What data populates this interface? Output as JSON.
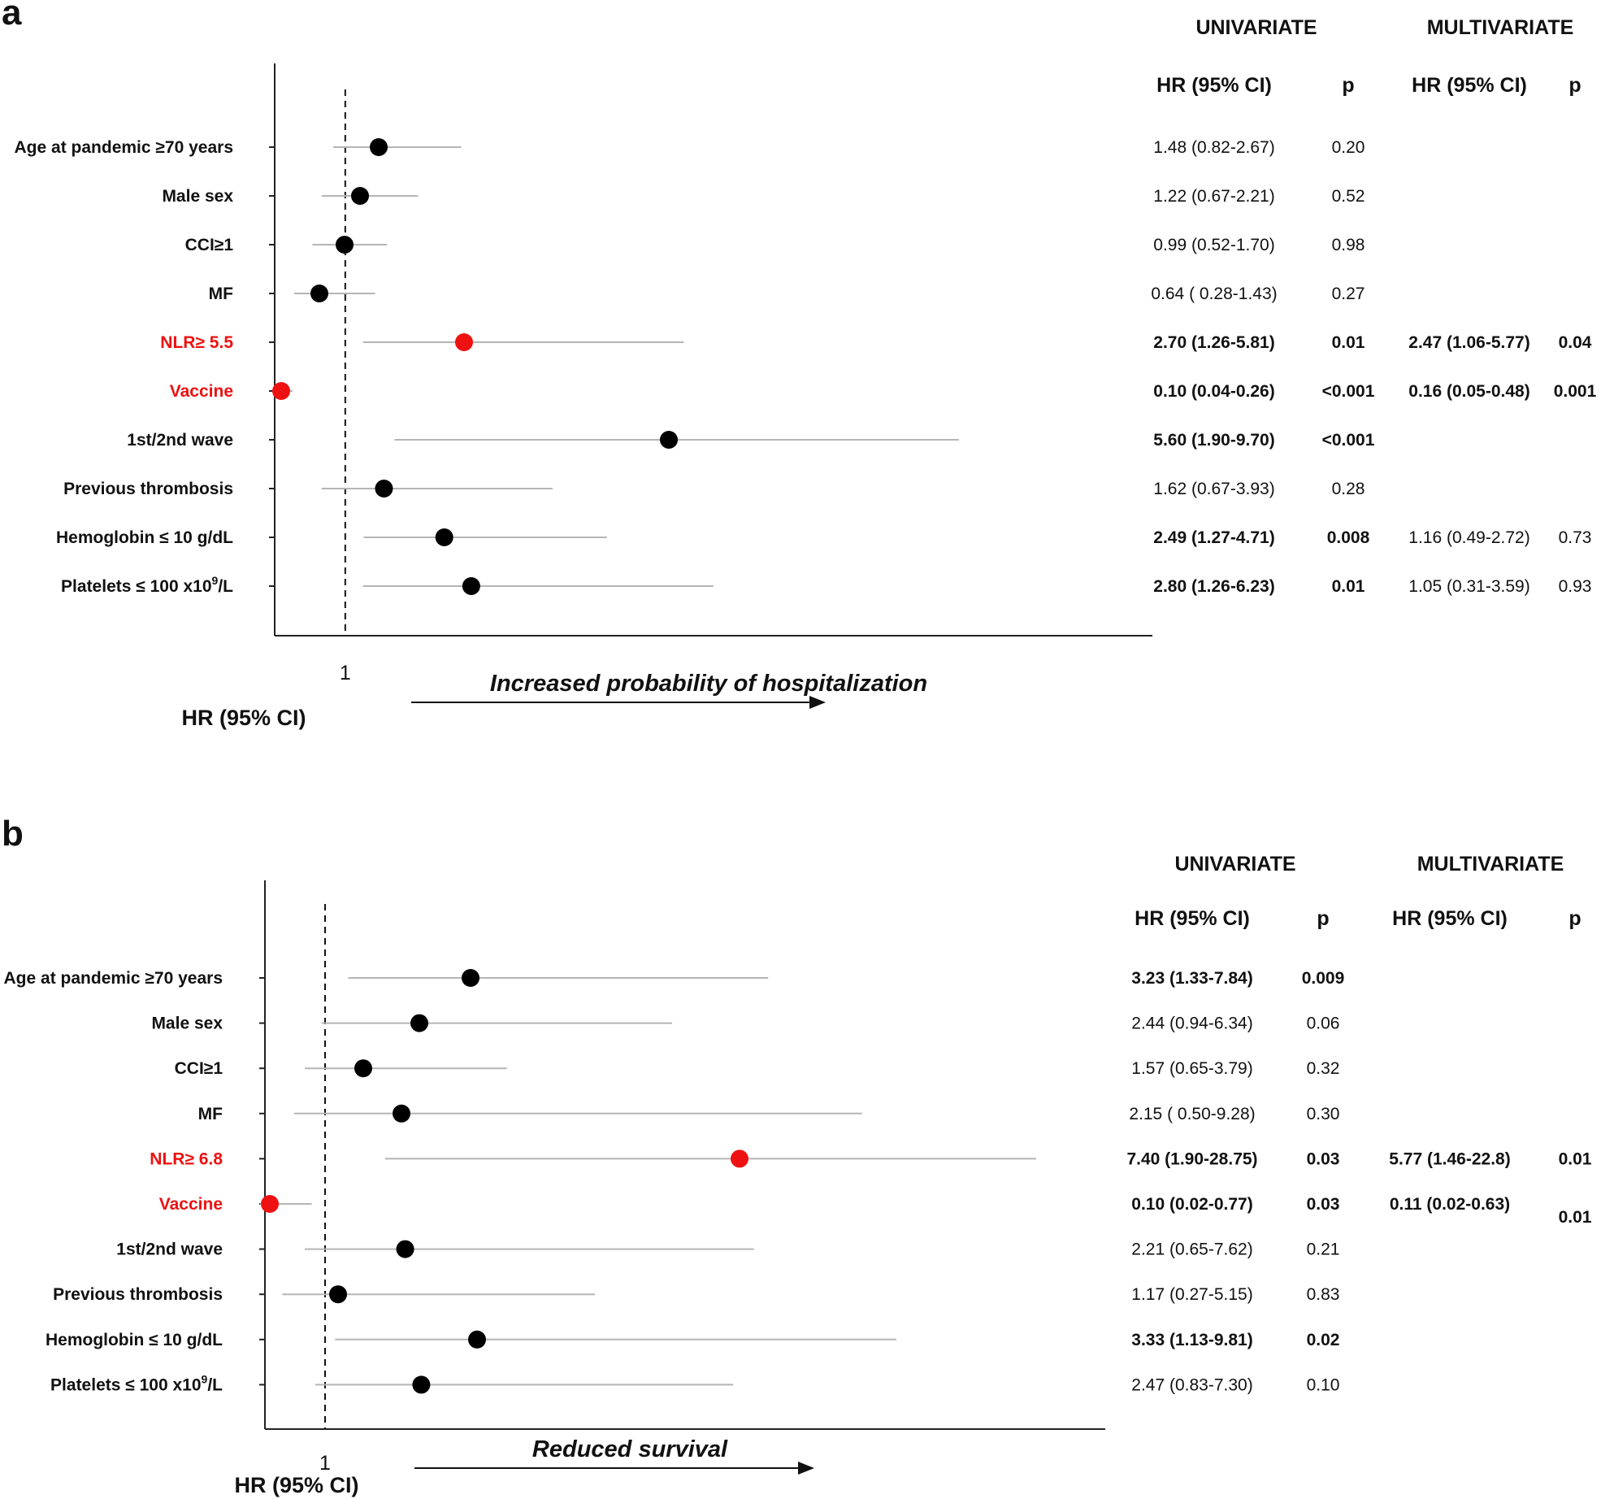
{
  "colors": {
    "highlight": "#ee1111",
    "point": "#000000",
    "ci_line": "#b5b5b5",
    "axis": "#222222"
  },
  "chart_data": [
    {
      "type": "forest",
      "panel": "a",
      "x_reference": 1,
      "x_tick_label": "1",
      "x_axis_label": "HR (95% CI)",
      "arrow_label": "Increased probability of hospitalization",
      "column_groups": [
        "UNIVARIATE",
        "MULTIVARIATE"
      ],
      "column_headers": {
        "uni_hr": "HR (95% CI)",
        "uni_p": "p",
        "multi_hr": "HR (95% CI)",
        "multi_p": "p"
      },
      "rows": [
        {
          "label": "Age at pandemic ≥70 years",
          "highlight": false,
          "hr": 1.48,
          "lo": 0.82,
          "hi": 2.67,
          "uni_hr": "1.48 (0.82-2.67)",
          "uni_p": "0.20",
          "uni_bold": false,
          "multi_hr": "",
          "multi_p": "",
          "multi_bold": false
        },
        {
          "label": "Male sex",
          "highlight": false,
          "hr": 1.22,
          "lo": 0.67,
          "hi": 2.21,
          "uni_hr": "1.22  (0.67-2.21)",
          "uni_p": "0.52",
          "uni_bold": false,
          "multi_hr": "",
          "multi_p": "",
          "multi_bold": false
        },
        {
          "label": "CCI≥1",
          "highlight": false,
          "hr": 0.99,
          "lo": 0.52,
          "hi": 1.7,
          "uni_hr": "0.99 (0.52-1.70)",
          "uni_p": "0.98",
          "uni_bold": false,
          "multi_hr": "",
          "multi_p": "",
          "multi_bold": false
        },
        {
          "label": "MF",
          "highlight": false,
          "hr": 0.64,
          "lo": 0.28,
          "hi": 1.43,
          "uni_hr": "0.64 ( 0.28-1.43)",
          "uni_p": "0.27",
          "uni_bold": false,
          "multi_hr": "",
          "multi_p": "",
          "multi_bold": false
        },
        {
          "label": "NLR≥ 5.5",
          "highlight": true,
          "hr": 2.7,
          "lo": 1.26,
          "hi": 5.81,
          "uni_hr": "2.70 (1.26-5.81)",
          "uni_p": "0.01",
          "uni_bold": true,
          "multi_hr": "2.47 (1.06-5.77)",
          "multi_p": "0.04",
          "multi_bold": true
        },
        {
          "label": "Vaccine",
          "highlight": true,
          "hr": 0.1,
          "lo": 0.04,
          "hi": 0.26,
          "uni_hr": "0.10 (0.04-0.26)",
          "uni_p": "<0.001",
          "uni_bold": true,
          "multi_hr": "0.16 (0.05-0.48)",
          "multi_p": "0.001",
          "multi_bold": true
        },
        {
          "label": "1st/2nd wave",
          "highlight": false,
          "hr": 5.6,
          "lo": 1.9,
          "hi": 9.7,
          "uni_hr": "5.60 (1.90-9.70)",
          "uni_p": "<0.001",
          "uni_bold": true,
          "multi_hr": "",
          "multi_p": "",
          "multi_bold": false
        },
        {
          "label": "Previous thrombosis",
          "highlight": false,
          "hr": 1.62,
          "lo": 0.67,
          "hi": 3.93,
          "uni_hr": "1.62 (0.67-3.93)",
          "uni_p": "0.28",
          "uni_bold": false,
          "multi_hr": "",
          "multi_p": "",
          "multi_bold": false
        },
        {
          "label": "Hemoglobin ≤ 10 g/dL",
          "highlight": false,
          "hr": 2.49,
          "lo": 1.27,
          "hi": 4.71,
          "uni_hr": "2.49 (1.27-4.71)",
          "uni_p": "0.008",
          "uni_bold": true,
          "multi_hr": "1.16 (0.49-2.72)",
          "multi_p": "0.73",
          "multi_bold": false
        },
        {
          "label": "Platelets ≤ 100 x10",
          "label_sup": "9",
          "label_suffix": "/L",
          "highlight": false,
          "hr": 2.8,
          "lo": 1.26,
          "hi": 6.23,
          "uni_hr": "2.80 (1.26-6.23)",
          "uni_p": "0.01",
          "uni_bold": true,
          "multi_hr": "1.05 (0.31-3.59)",
          "multi_p": "0.93",
          "multi_bold": false
        }
      ]
    },
    {
      "type": "forest",
      "panel": "b",
      "x_reference": 1,
      "x_tick_label": "1",
      "x_axis_label": "HR (95% CI)",
      "arrow_label": "Reduced survival",
      "column_groups": [
        "UNIVARIATE",
        "MULTIVARIATE"
      ],
      "column_headers": {
        "uni_hr": "HR (95% CI)",
        "uni_p": "p",
        "multi_hr": "HR (95% CI)",
        "multi_p": "p"
      },
      "rows": [
        {
          "label": "Age at pandemic ≥70 years",
          "highlight": false,
          "hr": 3.23,
          "lo": 1.33,
          "hi": 7.84,
          "uni_hr": "3.23 (1.33-7.84)",
          "uni_p": "0.009",
          "uni_bold": true,
          "multi_hr": "",
          "multi_p": "",
          "multi_bold": false
        },
        {
          "label": "Male sex",
          "highlight": false,
          "hr": 2.44,
          "lo": 0.94,
          "hi": 6.34,
          "uni_hr": "2.44  (0.94-6.34)",
          "uni_p": "0.06",
          "uni_bold": false,
          "multi_hr": "",
          "multi_p": "",
          "multi_bold": false
        },
        {
          "label": "CCI≥1",
          "highlight": false,
          "hr": 1.57,
          "lo": 0.65,
          "hi": 3.79,
          "uni_hr": "1.57 (0.65-3.79)",
          "uni_p": "0.32",
          "uni_bold": false,
          "multi_hr": "",
          "multi_p": "",
          "multi_bold": false
        },
        {
          "label": "MF",
          "highlight": false,
          "hr": 2.15,
          "lo": 0.5,
          "hi": 9.28,
          "uni_hr": "2.15 ( 0.50-9.28)",
          "uni_p": "0.30",
          "uni_bold": false,
          "multi_hr": "",
          "multi_p": "",
          "multi_bold": false
        },
        {
          "label": "NLR≥ 6.8",
          "highlight": true,
          "hr": 7.4,
          "lo": 1.9,
          "hi": 28.75,
          "uni_hr": "7.40 (1.90-28.75)",
          "uni_p": "0.03",
          "uni_bold": true,
          "multi_hr": "5.77 (1.46-22.8)",
          "multi_p": "0.01",
          "multi_bold": true
        },
        {
          "label": "Vaccine",
          "highlight": true,
          "hr": 0.1,
          "lo": 0.02,
          "hi": 0.77,
          "uni_hr": "0.10 (0.02-0.77)",
          "uni_p": "0.03",
          "uni_bold": true,
          "multi_hr": "0.11 (0.02-0.63)",
          "multi_p": "0.01",
          "multi_bold": true
        },
        {
          "label": "1st/2nd wave",
          "highlight": false,
          "hr": 2.21,
          "lo": 0.65,
          "hi": 7.62,
          "uni_hr": "2.21 (0.65-7.62)",
          "uni_p": "0.21",
          "uni_bold": false,
          "multi_hr": "",
          "multi_p": "",
          "multi_bold": false
        },
        {
          "label": "Previous thrombosis",
          "highlight": false,
          "hr": 1.17,
          "lo": 0.27,
          "hi": 5.15,
          "uni_hr": "1.17 (0.27-5.15)",
          "uni_p": "0.83",
          "uni_bold": false,
          "multi_hr": "",
          "multi_p": "",
          "multi_bold": false
        },
        {
          "label": "Hemoglobin ≤ 10 g/dL",
          "highlight": false,
          "hr": 3.33,
          "lo": 1.13,
          "hi": 9.81,
          "uni_hr": "3.33 (1.13-9.81)",
          "uni_p": "0.02",
          "uni_bold": true,
          "multi_hr": "",
          "multi_p": "",
          "multi_bold": false
        },
        {
          "label": "Platelets ≤ 100 x10",
          "label_sup": "9",
          "label_suffix": "/L",
          "highlight": false,
          "hr": 2.47,
          "lo": 0.83,
          "hi": 7.3,
          "uni_hr": "2.47 (0.83-7.30)",
          "uni_p": "0.10",
          "uni_bold": false,
          "multi_hr": "",
          "multi_p": "",
          "multi_bold": false
        }
      ]
    }
  ]
}
